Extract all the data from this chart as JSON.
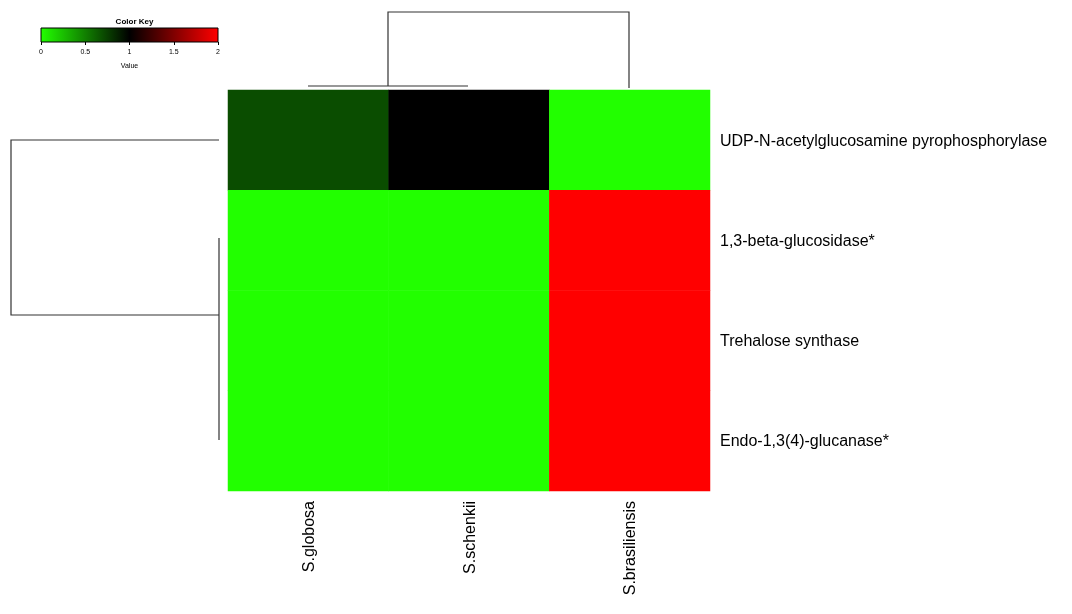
{
  "chart_data": {
    "type": "heatmap",
    "title": "Color Key",
    "clabel": "Value",
    "categories": [
      "S.globosa",
      "S.schenkii",
      "S.brasiliensis"
    ],
    "y_categories": [
      "UDP-N-acetylglucosamine pyrophosphorylase",
      "1,3-beta-glucosidase*",
      "Trehalose synthase",
      "Endo-1,3(4)-glucanase*"
    ],
    "cells": [
      [
        0.7,
        1,
        0
      ],
      [
        0,
        0,
        2
      ],
      [
        0,
        0,
        2
      ],
      [
        0,
        0,
        2
      ]
    ],
    "clim": [
      0,
      2
    ],
    "cticks": [
      0,
      0.5,
      1,
      1.5,
      2
    ]
  }
}
